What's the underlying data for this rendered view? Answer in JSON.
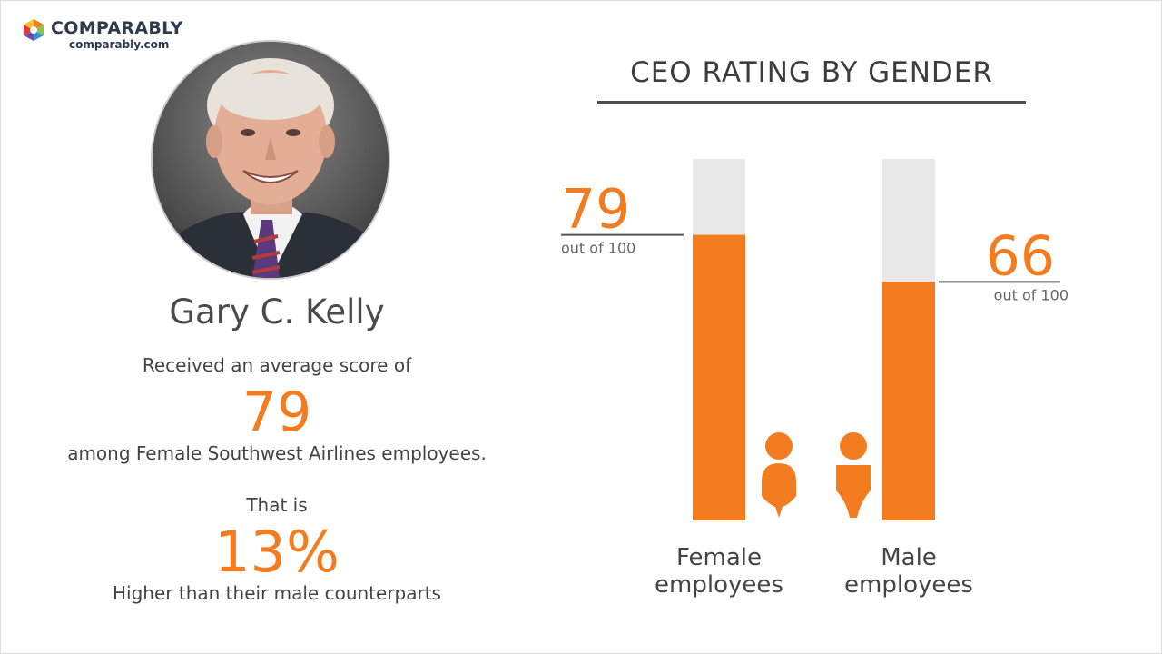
{
  "logo": {
    "name": "COMPARABLY",
    "url": "comparably.com"
  },
  "ceo": {
    "name": "Gary C. Kelly",
    "received_text": "Received an average score of",
    "score": "79",
    "among_text": "among Female Southwest Airlines employees.",
    "that_is_text": "That is",
    "percent": "13%",
    "higher_text": "Higher than their male counterparts"
  },
  "colors": {
    "accent": "#f47c20",
    "track": "#e8e8e8",
    "text": "#444444"
  },
  "chart_data": {
    "type": "bar",
    "title": "CEO RATING BY GENDER",
    "categories": [
      "Female employees",
      "Male employees"
    ],
    "category_lines": [
      [
        "Female",
        "employees"
      ],
      [
        "Male",
        "employees"
      ]
    ],
    "values": [
      79,
      66
    ],
    "value_labels": [
      "79",
      "66"
    ],
    "sublabel": "out of 100",
    "ylim": [
      0,
      100
    ],
    "icons": [
      "female-person-icon",
      "male-person-icon"
    ]
  }
}
